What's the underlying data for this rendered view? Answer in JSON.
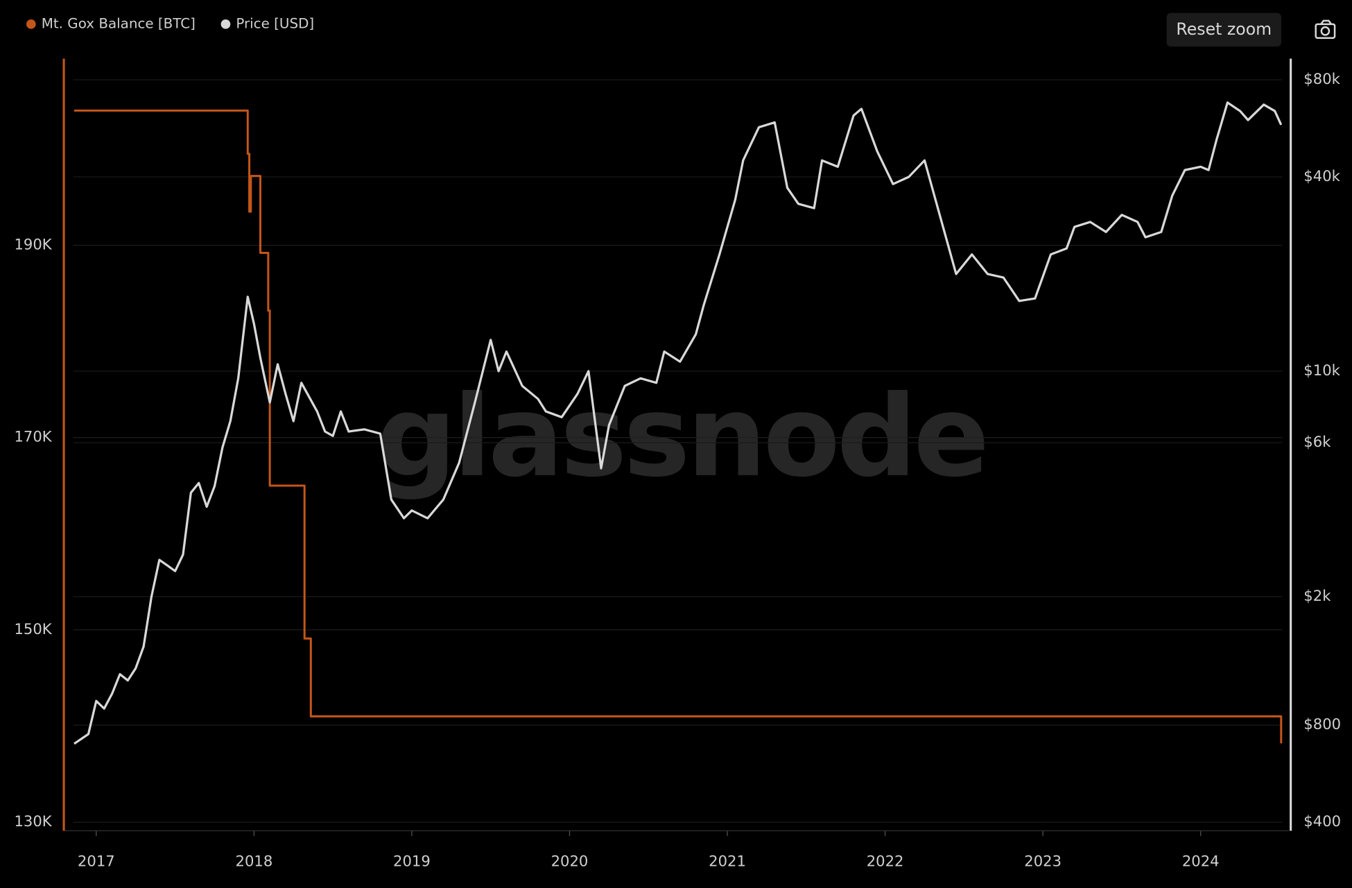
{
  "toolbar": {
    "reset_zoom": "Reset zoom"
  },
  "chart_data": {
    "type": "line",
    "watermark": "glassnode",
    "step_series": 0,
    "xlim": [
      2016.8,
      2024.56
    ],
    "xticks": [
      2017,
      2018,
      2019,
      2020,
      2021,
      2022,
      2023,
      2024
    ],
    "ylim": [
      130000,
      209400
    ],
    "yticks": [
      {
        "value": 130000,
        "label": "130K"
      },
      {
        "value": 150000,
        "label": "150K"
      },
      {
        "value": 170000,
        "label": "170K"
      },
      {
        "value": 190000,
        "label": "190K"
      }
    ],
    "y2lim": [
      400,
      93000
    ],
    "y2log": true,
    "y2ticks": [
      {
        "value": 400,
        "label": "$400"
      },
      {
        "value": 800,
        "label": "$800"
      },
      {
        "value": 2000,
        "label": "$2k"
      },
      {
        "value": 6000,
        "label": "$6k"
      },
      {
        "value": 10000,
        "label": "$10k"
      },
      {
        "value": 40000,
        "label": "$40k"
      },
      {
        "value": 80000,
        "label": "$80k"
      }
    ],
    "grid": true,
    "legend": "top-left",
    "series": [
      {
        "name": "Mt. Gox Balance [BTC]",
        "color": "#c4561a",
        "axis": "y",
        "x": [
          2016.86,
          2017.96,
          2017.96,
          2017.97,
          2017.97,
          2017.98,
          2017.98,
          2018.04,
          2018.04,
          2018.09,
          2018.09,
          2018.1,
          2018.1,
          2018.32,
          2018.32,
          2018.36,
          2018.36,
          2024.51,
          2024.51
        ],
        "values": [
          204000,
          204000,
          199500,
          199500,
          193500,
          193500,
          197200,
          197200,
          189200,
          189200,
          183200,
          183200,
          165000,
          165000,
          149100,
          149100,
          141000,
          141000,
          138200
        ]
      },
      {
        "name": "Price [USD]",
        "color": "#d9d9d9",
        "axis": "y2",
        "x": [
          2016.86,
          2016.95,
          2017.0,
          2017.05,
          2017.1,
          2017.15,
          2017.2,
          2017.25,
          2017.3,
          2017.35,
          2017.4,
          2017.45,
          2017.5,
          2017.55,
          2017.6,
          2017.65,
          2017.7,
          2017.75,
          2017.8,
          2017.85,
          2017.9,
          2017.96,
          2018.0,
          2018.04,
          2018.1,
          2018.15,
          2018.2,
          2018.25,
          2018.3,
          2018.4,
          2018.45,
          2018.5,
          2018.55,
          2018.6,
          2018.7,
          2018.8,
          2018.87,
          2018.95,
          2019.0,
          2019.1,
          2019.2,
          2019.3,
          2019.4,
          2019.45,
          2019.5,
          2019.55,
          2019.6,
          2019.7,
          2019.8,
          2019.85,
          2019.95,
          2020.05,
          2020.12,
          2020.2,
          2020.25,
          2020.35,
          2020.45,
          2020.55,
          2020.6,
          2020.7,
          2020.8,
          2020.85,
          2020.95,
          2021.05,
          2021.1,
          2021.2,
          2021.3,
          2021.38,
          2021.45,
          2021.55,
          2021.6,
          2021.7,
          2021.8,
          2021.85,
          2021.95,
          2022.05,
          2022.15,
          2022.25,
          2022.35,
          2022.45,
          2022.55,
          2022.65,
          2022.75,
          2022.85,
          2022.95,
          2023.05,
          2023.15,
          2023.2,
          2023.3,
          2023.4,
          2023.5,
          2023.6,
          2023.65,
          2023.75,
          2023.82,
          2023.9,
          2024.0,
          2024.05,
          2024.1,
          2024.17,
          2024.25,
          2024.3,
          2024.4,
          2024.47,
          2024.51
        ],
        "values": [
          700,
          750,
          950,
          900,
          1000,
          1150,
          1100,
          1200,
          1400,
          2000,
          2600,
          2500,
          2400,
          2700,
          4200,
          4500,
          3800,
          4400,
          5800,
          7000,
          9500,
          17000,
          14000,
          11000,
          8000,
          10500,
          8500,
          7000,
          9200,
          7500,
          6500,
          6300,
          7500,
          6500,
          6600,
          6400,
          4000,
          3500,
          3700,
          3500,
          4000,
          5200,
          8000,
          10000,
          12500,
          10000,
          11500,
          9000,
          8200,
          7500,
          7200,
          8500,
          10000,
          5000,
          6800,
          9000,
          9500,
          9200,
          11500,
          10700,
          13000,
          16000,
          23000,
          34000,
          45000,
          57000,
          59000,
          37000,
          33000,
          32000,
          45000,
          43000,
          62000,
          65000,
          48000,
          38000,
          40000,
          45000,
          30000,
          20000,
          23000,
          20000,
          19500,
          16500,
          16800,
          23000,
          24000,
          28000,
          29000,
          27000,
          30500,
          29000,
          26000,
          27000,
          35000,
          42000,
          43000,
          42000,
          52000,
          68000,
          64000,
          60000,
          67000,
          64000,
          58000
        ]
      }
    ]
  }
}
